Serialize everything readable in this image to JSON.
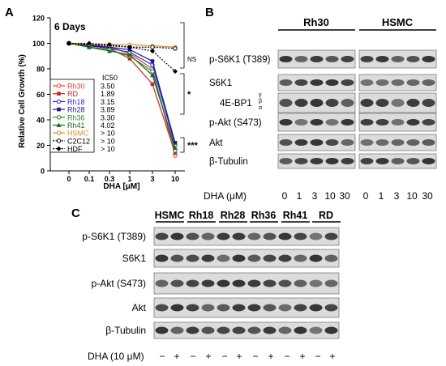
{
  "panels": {
    "a": "A",
    "b": "B",
    "c": "C"
  },
  "chart_data": {
    "type": "line",
    "title": "6 Days",
    "xlabel": "DHA [μM]",
    "ylabel": "Relative Cell Growth (%)",
    "categories": [
      "0",
      "0.1",
      "0.3",
      "1",
      "3",
      "10"
    ],
    "ylim": [
      0,
      120
    ],
    "yticks": [
      0,
      20,
      40,
      60,
      80,
      100,
      120
    ],
    "legend_header": "IC50",
    "series": [
      {
        "name": "Rh30",
        "ic50": "3.50",
        "color": "#e8402a",
        "marker": "circle-open",
        "dashed": false,
        "values": [
          100,
          99,
          97,
          92,
          80,
          12
        ]
      },
      {
        "name": "RD",
        "ic50": "1.89",
        "color": "#d42020",
        "marker": "square",
        "dashed": false,
        "values": [
          100,
          99,
          96,
          88,
          68,
          14
        ]
      },
      {
        "name": "Rh18",
        "ic50": "3.15",
        "color": "#2a2ad8",
        "marker": "circle-open",
        "dashed": false,
        "values": [
          100,
          98,
          96,
          93,
          83,
          20
        ]
      },
      {
        "name": "Rh28",
        "ic50": "3.89",
        "color": "#1a1a9a",
        "marker": "square",
        "dashed": false,
        "values": [
          100,
          98,
          97,
          95,
          86,
          22
        ]
      },
      {
        "name": "Rh36",
        "ic50": "3.30",
        "color": "#2a8a2a",
        "marker": "circle-open",
        "dashed": false,
        "values": [
          100,
          97,
          95,
          90,
          78,
          16
        ]
      },
      {
        "name": "Rh41",
        "ic50": "4.02",
        "color": "#1a6a1a",
        "marker": "triangle",
        "dashed": false,
        "values": [
          100,
          97,
          94,
          91,
          75,
          18
        ]
      },
      {
        "name": "HSMC",
        "ic50": "> 10",
        "color": "#e08a2a",
        "marker": "circle-open",
        "dashed": false,
        "values": [
          100,
          99,
          99,
          99,
          98,
          97
        ]
      },
      {
        "name": "C2C12",
        "ic50": "> 10",
        "color": "#000000",
        "marker": "circle-open",
        "dashed": true,
        "values": [
          100,
          99,
          98,
          97,
          97,
          96
        ]
      },
      {
        "name": "HDF",
        "ic50": "> 10",
        "color": "#000000",
        "marker": "diamond",
        "dashed": true,
        "values": [
          100,
          100,
          99,
          97,
          94,
          78
        ]
      }
    ],
    "annotations": [
      "NS",
      "*",
      "***"
    ]
  },
  "blot_b": {
    "groups": [
      "Rh30",
      "HSMC"
    ],
    "rows": [
      "p-S6K1 (T389)",
      "S6K1",
      "4E-BP1",
      "p-Akt (S473)",
      "Akt",
      "β-Tubulin"
    ],
    "isoforms": [
      "γ",
      "β",
      "α"
    ],
    "x_label": "DHA (μM)",
    "lanes": [
      "0",
      "1",
      "3",
      "10",
      "30",
      "0",
      "1",
      "3",
      "10",
      "30"
    ]
  },
  "blot_c": {
    "groups": [
      "HSMC",
      "Rh18",
      "Rh28",
      "Rh36",
      "Rh41",
      "RD"
    ],
    "rows": [
      "p-S6K1 (T389)",
      "S6K1",
      "p-Akt (S473)",
      "Akt",
      "β-Tubulin"
    ],
    "x_label": "DHA (10 μM)",
    "lanes": [
      "−",
      "+",
      "−",
      "+",
      "−",
      "+",
      "−",
      "+",
      "−",
      "+",
      "−",
      "+"
    ]
  }
}
